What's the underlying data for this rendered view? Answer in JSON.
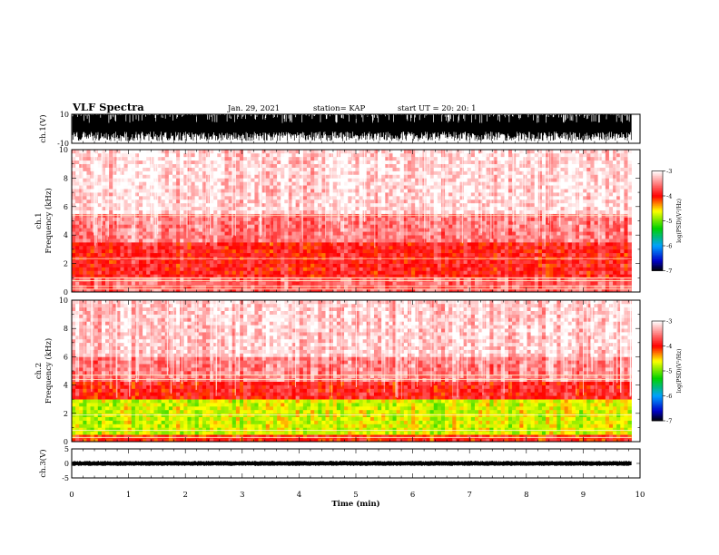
{
  "header": {
    "title": "VLF Spectra",
    "date": "Jan. 29, 2021",
    "station": "station= KAP",
    "start": "start  UT  =   20: 20: 1"
  },
  "chart_data": [
    {
      "id": "ch1-waveform",
      "type": "line",
      "ylabel": "ch.1(V)",
      "ylim": [
        -10,
        10
      ],
      "yticks": [
        "10",
        "-10"
      ],
      "xlim": [
        0,
        10
      ],
      "description_values": "dense waveform filling range approx -8 to 10 V over 0 to 9.85 min"
    },
    {
      "id": "ch1-spectrogram",
      "type": "heatmap",
      "ylabel_top": "ch.1",
      "ylabel": "Frequency  (kHz)",
      "ylim": [
        0,
        10
      ],
      "yticks": [
        "0",
        "2",
        "4",
        "6",
        "8",
        "10"
      ],
      "xlim": [
        0,
        10
      ],
      "data_end_min": 9.85,
      "colorbar": {
        "label": "log(PSD)(V²/Hz)",
        "ticks": [
          "-3",
          "-4",
          "-5",
          "-6",
          "-7"
        ],
        "range": [
          -7,
          -3
        ]
      },
      "bands": [
        {
          "f0": 0.0,
          "f1": 1.0,
          "level": -3.6
        },
        {
          "f0": 1.0,
          "f1": 3.5,
          "level": -3.9
        },
        {
          "f0": 3.5,
          "f1": 5.5,
          "level": -3.5
        },
        {
          "f0": 5.5,
          "f1": 10.0,
          "level": -3.15
        }
      ],
      "lines_khz": [
        0.2,
        0.4,
        0.8,
        1.0,
        2.35,
        5.4
      ]
    },
    {
      "id": "ch2-spectrogram",
      "type": "heatmap",
      "ylabel_top": "ch.2",
      "ylabel": "Frequency  (kHz)",
      "ylim": [
        0,
        10
      ],
      "yticks": [
        "0",
        "2",
        "4",
        "6",
        "8",
        "10"
      ],
      "xlim": [
        0,
        10
      ],
      "data_end_min": 9.85,
      "colorbar": {
        "label": "log(PSD)(V²/Hz)",
        "ticks": [
          "-3",
          "-4",
          "-5",
          "-6",
          "-7"
        ],
        "range": [
          -7,
          -3
        ]
      },
      "bands": [
        {
          "f0": 0.0,
          "f1": 0.5,
          "level": -4.0
        },
        {
          "f0": 0.5,
          "f1": 3.0,
          "level": -4.7
        },
        {
          "f0": 3.0,
          "f1": 4.2,
          "level": -3.9
        },
        {
          "f0": 4.2,
          "f1": 6.0,
          "level": -3.5
        },
        {
          "f0": 6.0,
          "f1": 10.0,
          "level": -3.2
        }
      ],
      "lines_khz": [
        0.3,
        0.8,
        1.9,
        4.4,
        4.7
      ]
    },
    {
      "id": "ch3-waveform",
      "type": "line",
      "ylabel": "ch.3(V)",
      "ylim": [
        -5,
        5
      ],
      "yticks": [
        "5",
        "0",
        "-5"
      ],
      "xlim": [
        0,
        10
      ],
      "xlabel": "Time  (min)",
      "xticks": [
        "0",
        "1",
        "2",
        "3",
        "4",
        "5",
        "6",
        "7",
        "8",
        "9",
        "10"
      ],
      "description_values": "narrow band around approx 0 V, 0 to 9.85 min"
    }
  ]
}
